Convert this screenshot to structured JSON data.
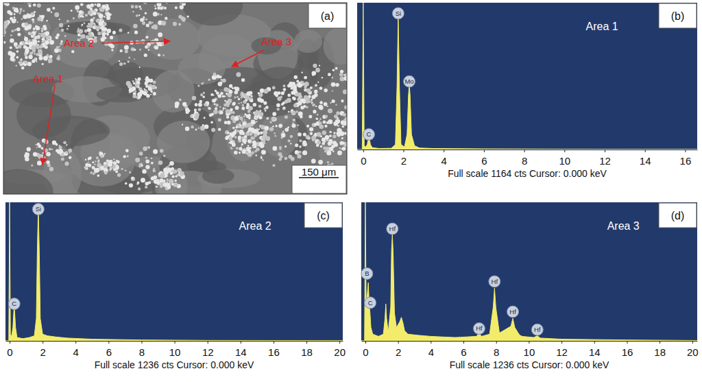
{
  "figure": {
    "panel_a": {
      "letter": "(a)",
      "labels": [
        "Area 2",
        "Area 3",
        "Area 1"
      ],
      "scale_bar": "150 μm"
    }
  },
  "chart_data": [
    {
      "type": "area",
      "letter": "(b)",
      "title": "Area 1",
      "xlabel": "Full scale 1164 cts Cursor: 0.000 keV",
      "x": [
        -0.3,
        -0.05,
        0,
        0.05,
        0.12,
        0.2,
        0.28,
        0.36,
        0.45,
        0.8,
        1.4,
        1.6,
        1.68,
        1.74,
        1.8,
        1.88,
        2.05,
        2.18,
        2.25,
        2.29,
        2.33,
        2.4,
        2.55,
        2.8,
        3.5,
        6,
        10,
        16.6
      ],
      "values": [
        0,
        0,
        1164,
        30,
        20,
        40,
        110,
        40,
        15,
        8,
        10,
        40,
        500,
        1080,
        500,
        40,
        20,
        120,
        430,
        520,
        430,
        120,
        30,
        12,
        8,
        5,
        3,
        2
      ],
      "xlim": [
        -0.3,
        16.6
      ],
      "xticks": [
        0,
        2,
        4,
        6,
        8,
        10,
        12,
        14,
        16
      ],
      "ylim": [
        0,
        1164
      ],
      "tick_labels": "x",
      "color": "#f2ec6a",
      "annotations": [
        {
          "text": "C",
          "x": 0.28,
          "y": 120
        },
        {
          "text": "Si",
          "x": 1.74,
          "y": 1080
        },
        {
          "text": "Mo",
          "x": 2.29,
          "y": 540
        }
      ]
    },
    {
      "type": "area",
      "letter": "(c)",
      "title": "Area 2",
      "xlabel": "Full scale 1236 cts Cursor: 0.000 keV",
      "x": [
        -0.25,
        -0.05,
        0,
        0.05,
        0.12,
        0.2,
        0.28,
        0.36,
        0.45,
        0.8,
        1.2,
        1.5,
        1.62,
        1.68,
        1.74,
        1.8,
        1.86,
        2.0,
        2.3,
        2.8,
        3.5,
        5,
        8,
        12,
        20.2
      ],
      "values": [
        0,
        0,
        1236,
        60,
        40,
        120,
        330,
        120,
        30,
        20,
        30,
        45,
        200,
        800,
        1200,
        800,
        200,
        60,
        45,
        35,
        25,
        15,
        8,
        4,
        2
      ],
      "xlim": [
        -0.25,
        20.2
      ],
      "xticks": [
        0,
        2,
        4,
        6,
        8,
        10,
        12,
        14,
        16,
        18,
        20
      ],
      "ylim": [
        0,
        1236
      ],
      "tick_labels": "x",
      "color": "#f2ec6a",
      "annotations": [
        {
          "text": "C",
          "x": 0.28,
          "y": 330
        },
        {
          "text": "Si",
          "x": 1.74,
          "y": 1200
        }
      ]
    },
    {
      "type": "area",
      "letter": "(d)",
      "title": "Area 3",
      "xlabel": "Full scale 1236 cts Cursor: 0.000 keV",
      "x": [
        -0.25,
        -0.05,
        0,
        0.05,
        0.12,
        0.18,
        0.24,
        0.28,
        0.34,
        0.45,
        0.8,
        1.1,
        1.2,
        1.25,
        1.3,
        1.4,
        1.55,
        1.6,
        1.65,
        1.7,
        1.78,
        1.9,
        2.1,
        2.2,
        2.3,
        2.4,
        2.6,
        3.2,
        4,
        5.5,
        6.8,
        6.96,
        7.1,
        7.6,
        7.82,
        7.9,
        7.98,
        8.2,
        8.9,
        9.02,
        9.14,
        9.35,
        9.45,
        9.6,
        10.3,
        10.52,
        10.7,
        12,
        16,
        20.3
      ],
      "values": [
        0,
        0,
        1236,
        300,
        420,
        520,
        300,
        260,
        120,
        60,
        40,
        60,
        200,
        330,
        200,
        80,
        300,
        800,
        950,
        780,
        250,
        120,
        170,
        210,
        160,
        90,
        60,
        50,
        40,
        30,
        40,
        70,
        40,
        60,
        300,
        470,
        300,
        70,
        130,
        200,
        120,
        70,
        50,
        40,
        30,
        45,
        25,
        15,
        8,
        3
      ],
      "xlim": [
        -0.25,
        20.3
      ],
      "xticks": [
        0,
        2,
        4,
        6,
        8,
        10,
        12,
        14,
        16,
        18,
        20
      ],
      "ylim": [
        0,
        1236
      ],
      "tick_labels": "x",
      "color": "#f2ec6a",
      "annotations": [
        {
          "text": "B",
          "x": 0.1,
          "y": 600
        },
        {
          "text": "C",
          "x": 0.3,
          "y": 340
        },
        {
          "text": "Hf",
          "x": 1.65,
          "y": 1000
        },
        {
          "text": "Hf",
          "x": 6.96,
          "y": 110
        },
        {
          "text": "Hf",
          "x": 7.9,
          "y": 530
        },
        {
          "text": "Hf",
          "x": 9.02,
          "y": 260
        },
        {
          "text": "Hf",
          "x": 10.52,
          "y": 100
        }
      ]
    }
  ]
}
